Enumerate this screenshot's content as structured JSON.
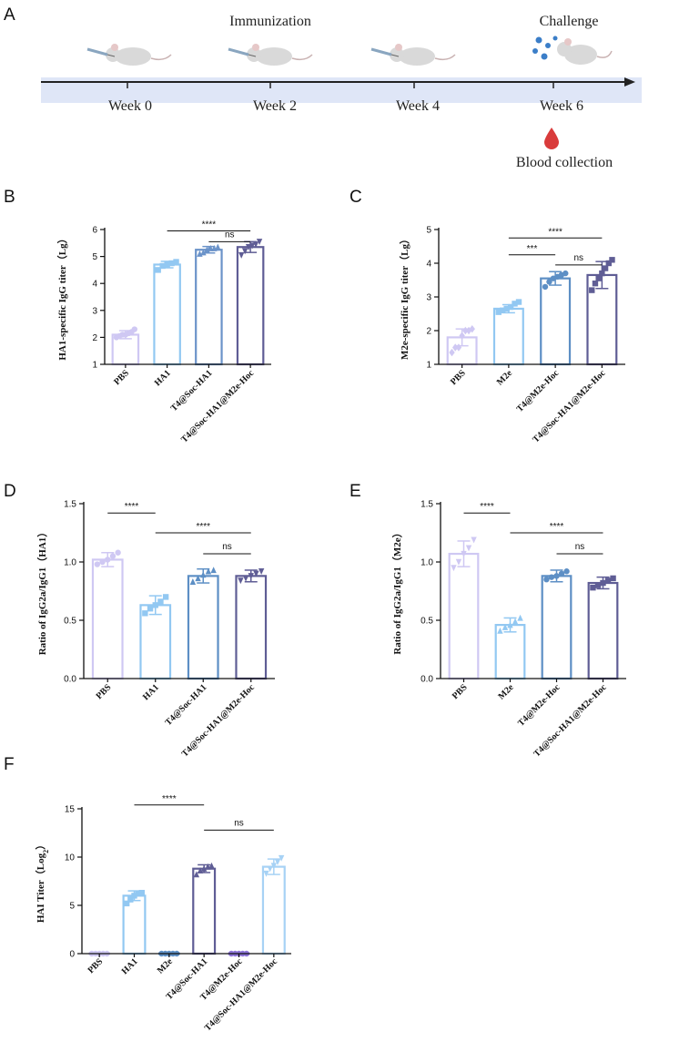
{
  "timeline": {
    "panel_letter": "A",
    "immunization_label": "Immunization",
    "challenge_label": "Challenge",
    "weeks": [
      "Week 0",
      "Week 2",
      "Week 4",
      "Week 6"
    ],
    "blood_label": "Blood collection",
    "colors": {
      "band": "#dfe6f7",
      "axis": "#222222",
      "blood": "#d93b3b",
      "virus": "#3b7ec8"
    },
    "icons": [
      "mouse-syringe-icon",
      "mouse-syringe-icon",
      "mouse-syringe-icon",
      "virus-mouse-icon",
      "blood-drop-icon"
    ]
  },
  "chart_data": [
    {
      "panel": "B",
      "type": "bar",
      "ylabel": "HA1-specific IgG titer（Lg）",
      "ylim": [
        1,
        6
      ],
      "yticks": [
        1,
        2,
        3,
        4,
        5,
        6
      ],
      "categories": [
        "PBS",
        "HA1",
        "T4@Soc-HA1",
        "T4@Soc-HA1@M2e-Hoc"
      ],
      "values": [
        2.1,
        4.7,
        5.25,
        5.35
      ],
      "errors": [
        0.15,
        0.12,
        0.12,
        0.2
      ],
      "markers": [
        "circle",
        "square",
        "triangle",
        "triangle-down"
      ],
      "colors": [
        "#cfc8f3",
        "#92c8f2",
        "#6b93c9",
        "#5f5d95"
      ],
      "points": [
        [
          2.0,
          2.05,
          2.1,
          2.1,
          2.15,
          2.2,
          2.3
        ],
        [
          4.5,
          4.65,
          4.7,
          4.75,
          4.8
        ],
        [
          5.1,
          5.15,
          5.25,
          5.3,
          5.3,
          5.35
        ],
        [
          5.05,
          5.2,
          5.35,
          5.4,
          5.45,
          5.55
        ]
      ],
      "significance": [
        {
          "from": 1,
          "to": 3,
          "label": "****",
          "y": 5.95
        },
        {
          "from": 2,
          "to": 3,
          "label": "ns",
          "y": 5.55
        }
      ]
    },
    {
      "panel": "C",
      "type": "bar",
      "ylabel": "M2e-specific IgG titer（Lg）",
      "ylim": [
        1,
        5
      ],
      "yticks": [
        1,
        2,
        3,
        4,
        5
      ],
      "categories": [
        "PBS",
        "M2e",
        "T4@M2e-Hoc",
        "T4@Soc-HA1@M2e-Hoc"
      ],
      "values": [
        1.8,
        2.65,
        3.55,
        3.65
      ],
      "errors": [
        0.25,
        0.12,
        0.2,
        0.4
      ],
      "markers": [
        "diamond",
        "square",
        "circle",
        "square"
      ],
      "colors": [
        "#cfc8f3",
        "#92c8f2",
        "#5d8fc5",
        "#5f5d95"
      ],
      "points": [
        [
          1.35,
          1.5,
          1.5,
          1.85,
          2.0,
          2.0,
          2.05
        ],
        [
          2.55,
          2.6,
          2.65,
          2.7,
          2.8,
          2.85
        ],
        [
          3.3,
          3.45,
          3.55,
          3.6,
          3.65,
          3.7
        ],
        [
          3.2,
          3.4,
          3.55,
          3.7,
          3.85,
          4.0,
          4.1
        ]
      ],
      "significance": [
        {
          "from": 1,
          "to": 3,
          "label": "****",
          "y": 4.75
        },
        {
          "from": 1,
          "to": 2,
          "label": "***",
          "y": 4.25
        },
        {
          "from": 2,
          "to": 3,
          "label": "ns",
          "y": 3.95
        }
      ]
    },
    {
      "panel": "D",
      "type": "bar",
      "ylabel": "Ratio of IgG2a/IgG1（HA1）",
      "ylim": [
        0,
        1.5
      ],
      "yticks": [
        "0.0",
        "0.5",
        "1.0",
        "1.5"
      ],
      "categories": [
        "PBS",
        "HA1",
        "T4@Soc-HA1",
        "T4@Soc-HA1@M2e-Hoc"
      ],
      "values": [
        1.02,
        0.63,
        0.88,
        0.88
      ],
      "errors": [
        0.06,
        0.08,
        0.06,
        0.05
      ],
      "markers": [
        "circle",
        "square",
        "triangle",
        "triangle-down"
      ],
      "colors": [
        "#cfc8f3",
        "#92c8f2",
        "#5d8fc5",
        "#5f5d95"
      ],
      "points": [
        [
          0.98,
          1.0,
          1.02,
          1.05,
          1.08
        ],
        [
          0.56,
          0.6,
          0.63,
          0.66,
          0.7
        ],
        [
          0.83,
          0.86,
          0.89,
          0.92,
          0.93
        ],
        [
          0.84,
          0.86,
          0.88,
          0.9,
          0.92
        ]
      ],
      "significance": [
        {
          "from": 0,
          "to": 1,
          "label": "****",
          "y": 1.42
        },
        {
          "from": 1,
          "to": 3,
          "label": "****",
          "y": 1.25
        },
        {
          "from": 2,
          "to": 3,
          "label": "ns",
          "y": 1.07
        }
      ]
    },
    {
      "panel": "E",
      "type": "bar",
      "ylabel": "Ratio of IgG2a/IgG1（M2e）",
      "ylim": [
        0,
        1.5
      ],
      "yticks": [
        "0.0",
        "0.5",
        "1.0",
        "1.5"
      ],
      "categories": [
        "PBS",
        "M2e",
        "T4@M2e-Hoc",
        "T4@Soc-HA1@M2e-Hoc"
      ],
      "values": [
        1.07,
        0.46,
        0.88,
        0.82
      ],
      "errors": [
        0.11,
        0.06,
        0.05,
        0.05
      ],
      "markers": [
        "triangle-down",
        "triangle",
        "circle",
        "square"
      ],
      "colors": [
        "#cfc8f3",
        "#92c8f2",
        "#5d8fc5",
        "#5f5d95"
      ],
      "points": [
        [
          0.95,
          1.0,
          1.07,
          1.12,
          1.19
        ],
        [
          0.41,
          0.44,
          0.46,
          0.49,
          0.52
        ],
        [
          0.85,
          0.87,
          0.88,
          0.9,
          0.92
        ],
        [
          0.78,
          0.8,
          0.82,
          0.84,
          0.86
        ]
      ],
      "significance": [
        {
          "from": 0,
          "to": 1,
          "label": "****",
          "y": 1.42
        },
        {
          "from": 1,
          "to": 3,
          "label": "****",
          "y": 1.25
        },
        {
          "from": 2,
          "to": 3,
          "label": "ns",
          "y": 1.07
        }
      ]
    },
    {
      "panel": "F",
      "type": "bar",
      "ylabel_main": "HAI Titer（Log",
      "ylabel_sub": "2",
      "ylabel_end": "）",
      "ylim": [
        0,
        15
      ],
      "yticks": [
        0,
        5,
        10,
        15
      ],
      "categories": [
        "PBS",
        "HA1",
        "M2e",
        "T4@Soc-HA1",
        "T4@M2e-Hoc",
        "T4@Soc-HA1@M2e-Hoc"
      ],
      "values": [
        0,
        6.0,
        0,
        8.8,
        0,
        9.0
      ],
      "errors": [
        0,
        0.5,
        0,
        0.4,
        0,
        0.8
      ],
      "markers": [
        "circle",
        "square",
        "circle",
        "triangle",
        "circle",
        "triangle-down"
      ],
      "colors": [
        "#cfc8f3",
        "#92c8f2",
        "#5d8fc5",
        "#5f5d95",
        "#8d74d8",
        "#a7d2f5"
      ],
      "points": [
        [
          0,
          0,
          0,
          0,
          0
        ],
        [
          5.2,
          5.6,
          6.0,
          6.2,
          6.3
        ],
        [
          0,
          0,
          0,
          0,
          0
        ],
        [
          8.2,
          8.6,
          8.8,
          9.0,
          9.1
        ],
        [
          0,
          0,
          0,
          0,
          0
        ],
        [
          8.3,
          8.8,
          9.1,
          9.5,
          9.9
        ]
      ],
      "significance": [
        {
          "from": 1,
          "to": 3,
          "label": "****",
          "y": 15.4
        },
        {
          "from": 3,
          "to": 5,
          "label": "ns",
          "y": 12.8
        }
      ]
    }
  ]
}
